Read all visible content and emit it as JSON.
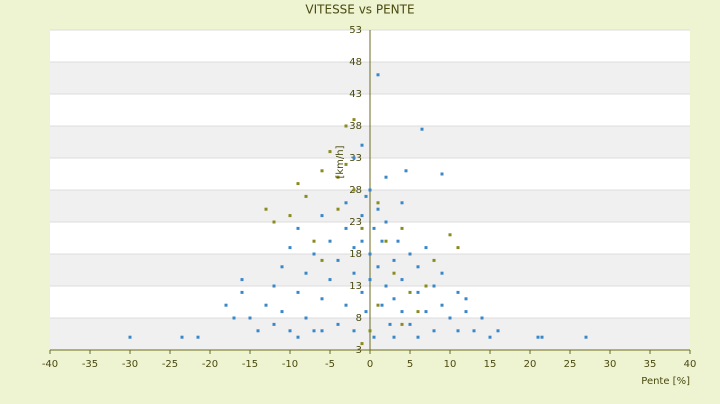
{
  "chart_data": {
    "type": "scatter",
    "title": "VITESSE vs PENTE",
    "x_label": "Pente [%]",
    "y_label": "[km/h]",
    "xlim": [
      -40,
      40
    ],
    "xticks": [
      -40,
      -35,
      -30,
      -25,
      -20,
      -15,
      -10,
      -5,
      0,
      5,
      10,
      15,
      20,
      25,
      30,
      35,
      40
    ],
    "ylim": [
      3,
      53
    ],
    "yticks": [
      3,
      8,
      13,
      18,
      23,
      28,
      33,
      38,
      43,
      48,
      53
    ],
    "grid": true,
    "series": [
      {
        "color": "#3a87c8",
        "x": [
          -30,
          -23.5,
          -21.5,
          21,
          21.5,
          27,
          1,
          6.5,
          4.5,
          9,
          -16,
          -16,
          -15,
          -14,
          -13,
          -12,
          -12,
          -11,
          -11,
          -10,
          -10,
          -9,
          -9,
          -8,
          -8,
          -7,
          -7,
          -6,
          -6,
          -5,
          -5,
          -4,
          -4,
          -3,
          -3,
          -3,
          -2,
          -2,
          -2,
          -1,
          -1,
          -1,
          -0.5,
          -0.5,
          0,
          0,
          0,
          0.5,
          0.5,
          1,
          1,
          1.5,
          1.5,
          2,
          2,
          2.5,
          3,
          3,
          3.5,
          4,
          4,
          5,
          5,
          6,
          6,
          7,
          7,
          8,
          8,
          9,
          9,
          10,
          11,
          11,
          12,
          13,
          14,
          15,
          16,
          -17,
          -18,
          -2,
          -1,
          2,
          4,
          -6,
          6,
          -9,
          3,
          12
        ],
        "values": [
          5,
          5,
          5,
          5,
          5,
          5,
          46,
          37.5,
          31,
          30.5,
          12,
          14,
          8,
          6,
          10,
          13,
          7,
          16,
          9,
          6,
          19,
          12,
          22,
          8,
          15,
          18,
          6,
          11,
          24,
          14,
          20,
          7,
          17,
          22,
          10,
          26,
          15,
          19,
          6,
          24,
          12,
          20,
          27,
          9,
          18,
          28,
          14,
          22,
          5,
          16,
          25,
          10,
          20,
          13,
          23,
          7,
          17,
          11,
          20,
          9,
          14,
          18,
          7,
          12,
          16,
          9,
          19,
          6,
          13,
          10,
          15,
          8,
          6,
          12,
          9,
          6,
          8,
          5,
          6,
          8,
          10,
          33,
          35,
          30,
          26,
          6,
          5,
          5,
          5,
          11
        ]
      },
      {
        "color": "#8a8a1e",
        "x": [
          -9,
          -8,
          -6,
          -5,
          -4,
          -3,
          -2,
          -13,
          -12,
          -7,
          -6,
          -4,
          -3,
          -2,
          -1,
          1,
          2,
          3,
          4,
          5,
          6,
          7,
          8,
          10,
          11,
          -1,
          0,
          1,
          4,
          -10
        ],
        "values": [
          29,
          27,
          31,
          34,
          30,
          38,
          39,
          25,
          23,
          20,
          17,
          25,
          32,
          28,
          22,
          26,
          20,
          15,
          22,
          12,
          9,
          13,
          17,
          21,
          19,
          4,
          6,
          10,
          7,
          24
        ]
      }
    ]
  }
}
